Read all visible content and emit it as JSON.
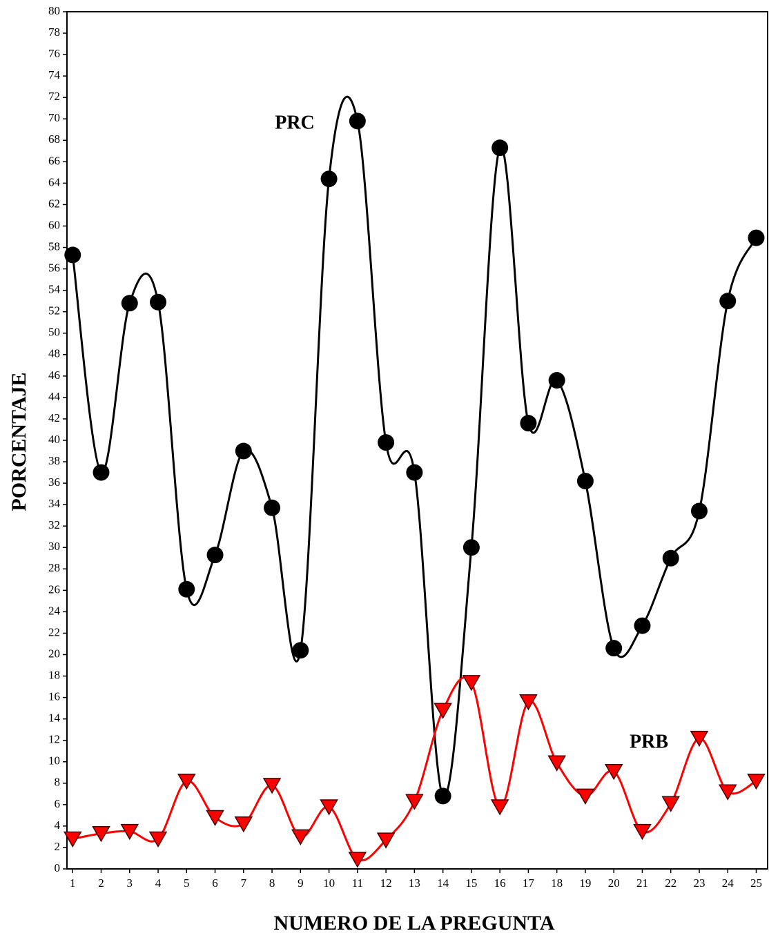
{
  "chart_data": {
    "type": "line",
    "xlabel": "NUMERO DE LA PREGUNTA",
    "ylabel": "PORCENTAJE",
    "annotations": [
      "PRC",
      "PRB"
    ],
    "x": [
      1,
      2,
      3,
      4,
      5,
      6,
      7,
      8,
      9,
      10,
      11,
      12,
      13,
      14,
      15,
      16,
      17,
      18,
      19,
      20,
      21,
      22,
      23,
      24,
      25
    ],
    "series": [
      {
        "name": "PRC",
        "color": "#000000",
        "marker": "circle",
        "values": [
          57.3,
          37,
          52.8,
          52.9,
          26.1,
          29.3,
          39,
          33.7,
          20.4,
          64.4,
          69.8,
          39.8,
          37,
          6.8,
          30,
          67.3,
          41.6,
          45.6,
          36.2,
          20.6,
          22.7,
          29,
          33.4,
          53,
          58.9
        ]
      },
      {
        "name": "PRB",
        "color": "#ff0000",
        "marker": "triangle-down",
        "values": [
          2.8,
          3.3,
          3.5,
          2.8,
          8.2,
          4.8,
          4.2,
          7.8,
          3.0,
          5.8,
          0.9,
          2.7,
          6.3,
          14.8,
          17.4,
          5.8,
          15.6,
          9.9,
          6.8,
          9.1,
          3.5,
          6.1,
          12.2,
          7.2,
          8.2
        ]
      }
    ],
    "xlim": [
      0.8,
      25.4
    ],
    "ylim": [
      0,
      80
    ],
    "xticks": [
      1,
      2,
      3,
      4,
      5,
      6,
      7,
      8,
      9,
      10,
      11,
      12,
      13,
      14,
      15,
      16,
      17,
      18,
      19,
      20,
      21,
      22,
      23,
      24,
      25
    ],
    "yticks": [
      0,
      2,
      4,
      6,
      8,
      10,
      12,
      14,
      16,
      18,
      20,
      22,
      24,
      26,
      28,
      30,
      32,
      34,
      36,
      38,
      40,
      42,
      44,
      46,
      48,
      50,
      52,
      54,
      56,
      58,
      60,
      62,
      64,
      66,
      68,
      70,
      72,
      74,
      76,
      78,
      80
    ],
    "grid": false
  }
}
